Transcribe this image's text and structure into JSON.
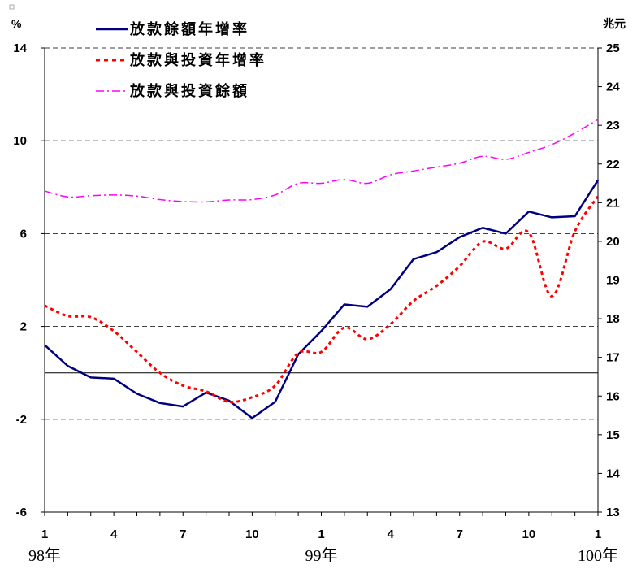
{
  "chart_data": {
    "type": "line",
    "left_axis": {
      "unit": "%",
      "ticks": [
        14,
        10,
        6,
        2,
        -2,
        -6
      ],
      "range": [
        -6,
        14
      ]
    },
    "right_axis": {
      "unit": "兆元",
      "ticks": [
        25,
        24,
        23,
        22,
        21,
        20,
        19,
        18,
        17,
        16,
        15,
        14,
        13
      ],
      "range": [
        13,
        25
      ]
    },
    "x_tick_labels": [
      "1",
      "4",
      "7",
      "10",
      "1",
      "4",
      "7",
      "10",
      "1"
    ],
    "x_tick_positions": [
      1,
      4,
      7,
      10,
      13,
      16,
      19,
      22,
      25
    ],
    "year_labels": [
      {
        "text": "98年",
        "x": 1
      },
      {
        "text": "99年",
        "x": 13
      },
      {
        "text": "100年",
        "x": 25
      }
    ],
    "x_range": [
      1,
      25
    ],
    "zero_line": 0,
    "grid": "horizontal dashed at left-axis ticks",
    "legend_position": "top-left",
    "series": [
      {
        "name": "放款餘額年增率",
        "axis": "left",
        "color": "#000080",
        "style": "solid",
        "x": [
          1,
          2,
          3,
          4,
          5,
          6,
          7,
          8,
          9,
          10,
          11,
          12,
          13,
          14,
          15,
          16,
          17,
          18,
          19,
          20,
          21,
          22,
          23,
          24,
          25
        ],
        "values": [
          1.2,
          0.3,
          -0.2,
          -0.25,
          -0.9,
          -1.3,
          -1.45,
          -0.85,
          -1.2,
          -1.95,
          -1.25,
          0.8,
          1.8,
          2.95,
          2.85,
          3.6,
          4.9,
          5.2,
          5.85,
          6.25,
          6.0,
          6.95,
          6.7,
          6.75,
          8.3
        ]
      },
      {
        "name": "放款與投資年增率",
        "axis": "left",
        "color": "#ff0000",
        "style": "dotted",
        "x": [
          1,
          2,
          3,
          4,
          5,
          6,
          7,
          8,
          9,
          10,
          11,
          12,
          13,
          14,
          15,
          16,
          17,
          18,
          19,
          20,
          21,
          22,
          23,
          24,
          25
        ],
        "values": [
          2.9,
          2.45,
          2.4,
          1.8,
          0.9,
          0.0,
          -0.55,
          -0.8,
          -1.25,
          -1.05,
          -0.55,
          0.85,
          0.9,
          1.95,
          1.45,
          2.1,
          3.1,
          3.75,
          4.6,
          5.65,
          5.35,
          6.05,
          3.3,
          6.1,
          7.6
        ]
      },
      {
        "name": "放款與投資餘額",
        "axis": "right",
        "color": "#ff00ff",
        "style": "dash-dot",
        "x": [
          1,
          2,
          3,
          4,
          5,
          6,
          7,
          8,
          9,
          10,
          11,
          12,
          13,
          14,
          15,
          16,
          17,
          18,
          19,
          20,
          21,
          22,
          23,
          24,
          25
        ],
        "values": [
          21.3,
          21.15,
          21.18,
          21.2,
          21.17,
          21.08,
          21.03,
          21.02,
          21.07,
          21.08,
          21.2,
          21.5,
          21.5,
          21.6,
          21.5,
          21.72,
          21.82,
          21.92,
          22.02,
          22.2,
          22.12,
          22.3,
          22.5,
          22.8,
          23.15
        ]
      }
    ]
  }
}
